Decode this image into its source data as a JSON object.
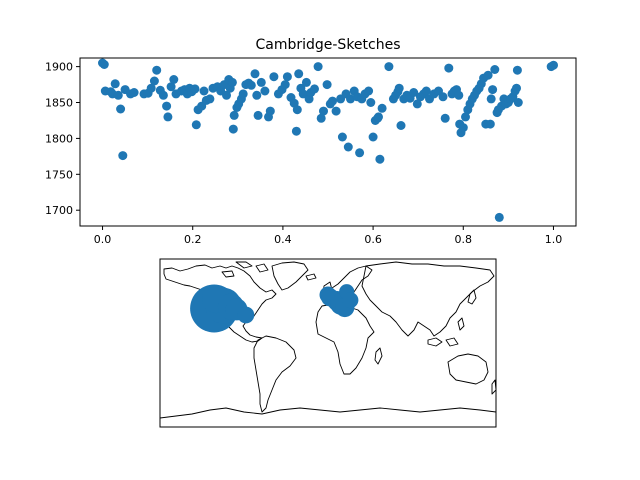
{
  "colors": {
    "marker": "#1f77b4",
    "axis": "#000000",
    "background": "#ffffff"
  },
  "chart_data": [
    {
      "type": "scatter",
      "title": "Cambridge-Sketches",
      "xlabel": "",
      "ylabel": "",
      "xlim": [
        -0.05,
        1.05
      ],
      "ylim": [
        1678,
        1912
      ],
      "xticks": [
        0.0,
        0.2,
        0.4,
        0.6,
        0.8,
        1.0
      ],
      "xtick_labels": [
        "0.0",
        "0.2",
        "0.4",
        "0.6",
        "0.8",
        "1.0"
      ],
      "yticks": [
        1700,
        1750,
        1800,
        1850,
        1900
      ],
      "ytick_labels": [
        "1700",
        "1750",
        "1800",
        "1850",
        "1900"
      ],
      "grid": false,
      "points": [
        [
          0.0,
          1905
        ],
        [
          0.004,
          1903
        ],
        [
          0.006,
          1866
        ],
        [
          0.018,
          1865
        ],
        [
          0.022,
          1862
        ],
        [
          0.028,
          1876
        ],
        [
          0.035,
          1860
        ],
        [
          0.04,
          1841
        ],
        [
          0.045,
          1776
        ],
        [
          0.05,
          1868
        ],
        [
          0.062,
          1862
        ],
        [
          0.07,
          1864
        ],
        [
          0.092,
          1862
        ],
        [
          0.101,
          1863
        ],
        [
          0.108,
          1870
        ],
        [
          0.115,
          1880
        ],
        [
          0.12,
          1895
        ],
        [
          0.128,
          1867
        ],
        [
          0.135,
          1860
        ],
        [
          0.142,
          1845
        ],
        [
          0.145,
          1830
        ],
        [
          0.152,
          1872
        ],
        [
          0.158,
          1882
        ],
        [
          0.163,
          1862
        ],
        [
          0.175,
          1866
        ],
        [
          0.182,
          1868
        ],
        [
          0.188,
          1862
        ],
        [
          0.193,
          1870
        ],
        [
          0.198,
          1865
        ],
        [
          0.205,
          1869
        ],
        [
          0.208,
          1819
        ],
        [
          0.212,
          1840
        ],
        [
          0.22,
          1845
        ],
        [
          0.225,
          1866
        ],
        [
          0.23,
          1853
        ],
        [
          0.238,
          1855
        ],
        [
          0.245,
          1870
        ],
        [
          0.255,
          1872
        ],
        [
          0.262,
          1866
        ],
        [
          0.27,
          1875
        ],
        [
          0.275,
          1860
        ],
        [
          0.28,
          1882
        ],
        [
          0.283,
          1870
        ],
        [
          0.288,
          1878
        ],
        [
          0.29,
          1813
        ],
        [
          0.292,
          1832
        ],
        [
          0.298,
          1843
        ],
        [
          0.302,
          1848
        ],
        [
          0.308,
          1855
        ],
        [
          0.312,
          1862
        ],
        [
          0.318,
          1875
        ],
        [
          0.324,
          1877
        ],
        [
          0.33,
          1874
        ],
        [
          0.338,
          1890
        ],
        [
          0.342,
          1860
        ],
        [
          0.345,
          1832
        ],
        [
          0.352,
          1878
        ],
        [
          0.36,
          1866
        ],
        [
          0.368,
          1830
        ],
        [
          0.372,
          1838
        ],
        [
          0.38,
          1886
        ],
        [
          0.39,
          1862
        ],
        [
          0.398,
          1868
        ],
        [
          0.405,
          1875
        ],
        [
          0.41,
          1886
        ],
        [
          0.418,
          1857
        ],
        [
          0.425,
          1849
        ],
        [
          0.43,
          1810
        ],
        [
          0.432,
          1840
        ],
        [
          0.435,
          1890
        ],
        [
          0.44,
          1870
        ],
        [
          0.445,
          1862
        ],
        [
          0.452,
          1878
        ],
        [
          0.458,
          1855
        ],
        [
          0.462,
          1864
        ],
        [
          0.47,
          1869
        ],
        [
          0.478,
          1900
        ],
        [
          0.485,
          1828
        ],
        [
          0.49,
          1838
        ],
        [
          0.498,
          1875
        ],
        [
          0.505,
          1848
        ],
        [
          0.51,
          1852
        ],
        [
          0.518,
          1838
        ],
        [
          0.528,
          1855
        ],
        [
          0.532,
          1802
        ],
        [
          0.54,
          1862
        ],
        [
          0.545,
          1788
        ],
        [
          0.55,
          1855
        ],
        [
          0.558,
          1866
        ],
        [
          0.565,
          1858
        ],
        [
          0.57,
          1780
        ],
        [
          0.575,
          1855
        ],
        [
          0.582,
          1862
        ],
        [
          0.59,
          1866
        ],
        [
          0.595,
          1850
        ],
        [
          0.6,
          1802
        ],
        [
          0.605,
          1825
        ],
        [
          0.61,
          1828
        ],
        [
          0.612,
          1830
        ],
        [
          0.615,
          1771
        ],
        [
          0.62,
          1842
        ],
        [
          0.635,
          1900
        ],
        [
          0.645,
          1855
        ],
        [
          0.65,
          1860
        ],
        [
          0.655,
          1865
        ],
        [
          0.658,
          1870
        ],
        [
          0.662,
          1818
        ],
        [
          0.668,
          1855
        ],
        [
          0.675,
          1860
        ],
        [
          0.682,
          1856
        ],
        [
          0.69,
          1864
        ],
        [
          0.698,
          1848
        ],
        [
          0.705,
          1858
        ],
        [
          0.712,
          1862
        ],
        [
          0.718,
          1866
        ],
        [
          0.725,
          1855
        ],
        [
          0.735,
          1862
        ],
        [
          0.745,
          1866
        ],
        [
          0.755,
          1858
        ],
        [
          0.76,
          1828
        ],
        [
          0.768,
          1898
        ],
        [
          0.775,
          1862
        ],
        [
          0.78,
          1866
        ],
        [
          0.785,
          1868
        ],
        [
          0.79,
          1860
        ],
        [
          0.792,
          1820
        ],
        [
          0.795,
          1808
        ],
        [
          0.8,
          1815
        ],
        [
          0.805,
          1830
        ],
        [
          0.81,
          1840
        ],
        [
          0.815,
          1848
        ],
        [
          0.82,
          1855
        ],
        [
          0.825,
          1860
        ],
        [
          0.83,
          1866
        ],
        [
          0.835,
          1870
        ],
        [
          0.84,
          1876
        ],
        [
          0.845,
          1884
        ],
        [
          0.85,
          1820
        ],
        [
          0.855,
          1888
        ],
        [
          0.86,
          1820
        ],
        [
          0.862,
          1855
        ],
        [
          0.865,
          1868
        ],
        [
          0.87,
          1896
        ],
        [
          0.875,
          1836
        ],
        [
          0.878,
          1840
        ],
        [
          0.88,
          1690
        ],
        [
          0.885,
          1845
        ],
        [
          0.89,
          1855
        ],
        [
          0.895,
          1848
        ],
        [
          0.9,
          1850
        ],
        [
          0.905,
          1855
        ],
        [
          0.91,
          1858
        ],
        [
          0.915,
          1866
        ],
        [
          0.918,
          1870
        ],
        [
          0.92,
          1895
        ],
        [
          0.922,
          1850
        ],
        [
          0.995,
          1900
        ],
        [
          1.0,
          1902
        ]
      ]
    },
    {
      "type": "map",
      "title": "",
      "projection": "plate-carree",
      "marker_size_encodes": "count",
      "points": [
        {
          "lon": -122.0,
          "lat": 37.0,
          "size": 1.0
        },
        {
          "lon": -112.0,
          "lat": 40.0,
          "size": 0.7
        },
        {
          "lon": -120.0,
          "lat": 47.0,
          "size": 0.5
        },
        {
          "lon": -104.0,
          "lat": 39.0,
          "size": 0.45
        },
        {
          "lon": -98.0,
          "lat": 36.0,
          "size": 0.35
        },
        {
          "lon": -88.0,
          "lat": 30.0,
          "size": 0.22
        },
        {
          "lon": -0.1,
          "lat": 51.5,
          "size": 0.22
        },
        {
          "lon": 2.3,
          "lat": 48.9,
          "size": 0.25
        },
        {
          "lon": 10.0,
          "lat": 45.0,
          "size": 0.3
        },
        {
          "lon": 14.0,
          "lat": 42.0,
          "size": 0.35
        },
        {
          "lon": 18.0,
          "lat": 38.0,
          "size": 0.28
        },
        {
          "lon": 20.0,
          "lat": 55.0,
          "size": 0.18
        },
        {
          "lon": 24.0,
          "lat": 46.0,
          "size": 0.2
        }
      ]
    }
  ]
}
